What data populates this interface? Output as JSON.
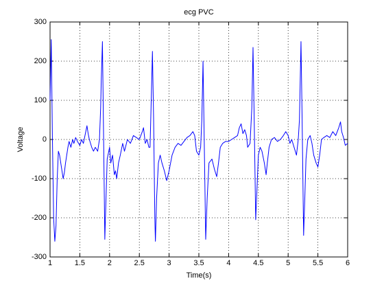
{
  "chart_data": {
    "type": "line",
    "title": "ecg PVC",
    "x_label": "Time(s)",
    "y_label": "Voltage",
    "x": [
      1.0,
      1.02,
      1.04,
      1.06,
      1.08,
      1.1,
      1.12,
      1.14,
      1.16,
      1.18,
      1.2,
      1.22,
      1.24,
      1.26,
      1.28,
      1.3,
      1.32,
      1.35,
      1.38,
      1.4,
      1.43,
      1.46,
      1.5,
      1.53,
      1.56,
      1.6,
      1.62,
      1.64,
      1.66,
      1.7,
      1.73,
      1.76,
      1.8,
      1.83,
      1.85,
      1.86,
      1.88,
      1.9,
      1.92,
      1.94,
      1.96,
      2.0,
      2.02,
      2.05,
      2.08,
      2.1,
      2.12,
      2.15,
      2.18,
      2.22,
      2.25,
      2.3,
      2.35,
      2.4,
      2.45,
      2.5,
      2.55,
      2.57,
      2.6,
      2.63,
      2.66,
      2.68,
      2.7,
      2.72,
      2.74,
      2.76,
      2.77,
      2.79,
      2.82,
      2.85,
      2.88,
      2.92,
      2.96,
      3.0,
      3.05,
      3.1,
      3.15,
      3.2,
      3.25,
      3.3,
      3.35,
      3.4,
      3.43,
      3.46,
      3.5,
      3.53,
      3.55,
      3.57,
      3.59,
      3.615,
      3.64,
      3.67,
      3.72,
      3.76,
      3.8,
      3.83,
      3.86,
      3.9,
      3.95,
      4.0,
      4.05,
      4.1,
      4.15,
      4.18,
      4.21,
      4.24,
      4.27,
      4.3,
      4.32,
      4.36,
      4.39,
      4.41,
      4.43,
      4.455,
      4.47,
      4.5,
      4.53,
      4.56,
      4.6,
      4.63,
      4.65,
      4.68,
      4.72,
      4.77,
      4.82,
      4.87,
      4.92,
      4.96,
      5.0,
      5.03,
      5.06,
      5.1,
      5.14,
      5.17,
      5.19,
      5.216,
      5.235,
      5.26,
      5.28,
      5.3,
      5.33,
      5.37,
      5.4,
      5.43,
      5.47,
      5.5,
      5.53,
      5.56,
      5.6,
      5.65,
      5.7,
      5.75,
      5.8,
      5.85,
      5.88,
      5.9,
      5.93,
      5.96,
      6.0
    ],
    "values": [
      100,
      255,
      0,
      -200,
      -260,
      -220,
      -100,
      -30,
      -40,
      -60,
      -80,
      -100,
      -85,
      -60,
      -40,
      -20,
      -5,
      -20,
      0,
      -10,
      5,
      -5,
      -15,
      0,
      -10,
      20,
      35,
      15,
      0,
      -20,
      -30,
      -20,
      -30,
      0,
      80,
      150,
      250,
      0,
      -255,
      -150,
      -50,
      -20,
      -60,
      -40,
      -90,
      -80,
      -100,
      -60,
      -40,
      -10,
      -30,
      0,
      -10,
      10,
      5,
      0,
      20,
      30,
      -10,
      0,
      -20,
      -20,
      100,
      225,
      50,
      -200,
      -260,
      -150,
      -60,
      -40,
      -60,
      -80,
      -105,
      -80,
      -40,
      -20,
      -10,
      -15,
      -5,
      5,
      10,
      20,
      10,
      -30,
      -40,
      -20,
      50,
      200,
      0,
      -255,
      -150,
      -60,
      -50,
      -75,
      -95,
      -60,
      -20,
      -10,
      -5,
      -5,
      0,
      5,
      10,
      30,
      40,
      15,
      25,
      10,
      -20,
      -10,
      80,
      235,
      50,
      -205,
      -150,
      -40,
      -20,
      -30,
      -60,
      -90,
      -60,
      -20,
      0,
      5,
      -5,
      0,
      10,
      20,
      10,
      -10,
      0,
      -20,
      -40,
      0,
      50,
      250,
      50,
      -245,
      -150,
      -50,
      0,
      10,
      -10,
      -40,
      -60,
      -70,
      -40,
      0,
      5,
      10,
      5,
      20,
      10,
      30,
      45,
      20,
      5,
      -15,
      -10
    ],
    "color": "#0000ff",
    "xlim": [
      1,
      6
    ],
    "ylim": [
      -300,
      300
    ],
    "xticks": [
      1,
      1.5,
      2,
      2.5,
      3,
      3.5,
      4,
      4.5,
      5,
      5.5,
      6
    ],
    "yticks": [
      -300,
      -200,
      -100,
      0,
      100,
      200,
      300
    ],
    "grid": true
  }
}
